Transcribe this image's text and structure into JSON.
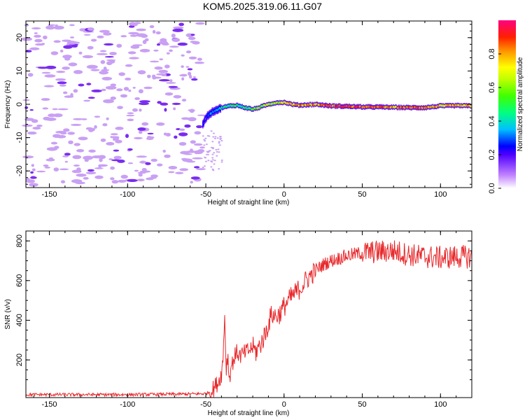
{
  "title": "KOM5.2025.319.06.11.G07",
  "chart_data": [
    {
      "type": "heatmap",
      "xlabel": "Height of straight line (km)",
      "ylabel": "Frequency (Hz)",
      "xlim": [
        -165,
        120
      ],
      "ylim": [
        -25,
        25
      ],
      "xticks": [
        -150,
        -100,
        -50,
        0,
        50,
        100
      ],
      "yticks": [
        -20,
        -10,
        0,
        10,
        20
      ],
      "noise_region_x": [
        -165,
        -52
      ],
      "trace": {
        "x": [
          -52,
          -50,
          -48,
          -45,
          -42,
          -40,
          -35,
          -30,
          -25,
          -20,
          -15,
          -10,
          -5,
          0,
          5,
          10,
          20,
          30,
          40,
          50,
          60,
          70,
          80,
          90,
          100,
          110,
          120
        ],
        "freq": [
          -6,
          -4,
          -3,
          -2,
          -1.5,
          -1,
          -0.5,
          -0.3,
          -1,
          -1.5,
          -0.8,
          0,
          0.5,
          0.6,
          0,
          -0.3,
          0,
          -0.5,
          -0.6,
          -0.8,
          -0.8,
          -0.9,
          -1,
          -1,
          -0.5,
          -0.4,
          -0.5
        ],
        "amplitude": [
          0.15,
          0.2,
          0.25,
          0.3,
          0.35,
          0.4,
          0.45,
          0.5,
          0.5,
          0.55,
          0.6,
          0.6,
          0.65,
          0.7,
          0.75,
          0.8,
          0.8,
          0.85,
          0.9,
          0.9,
          0.85,
          0.8,
          0.85,
          0.8,
          0.75,
          0.8,
          0.8
        ]
      },
      "colorbar": {
        "label": "Normalized spectral amplitude",
        "range": [
          0,
          1
        ],
        "ticks": [
          "0.0",
          "0.2",
          "0.4",
          "0.6",
          "0.8"
        ]
      }
    },
    {
      "type": "line",
      "xlabel": "Height of straight line (km)",
      "ylabel": "SNR (v/v)",
      "xlim": [
        -165,
        120
      ],
      "ylim": [
        10,
        850
      ],
      "xticks": [
        -150,
        -100,
        -50,
        0,
        50,
        100
      ],
      "yticks": [
        200,
        400,
        600,
        800
      ],
      "series": [
        {
          "name": "SNR",
          "color": "#e8282b",
          "x": [
            -165,
            -150,
            -100,
            -60,
            -50,
            -46,
            -42,
            -40,
            -39,
            -38,
            -37,
            -36,
            -35,
            -34,
            -32,
            -30,
            -28,
            -25,
            -22,
            -20,
            -18,
            -15,
            -12,
            -10,
            -8,
            -5,
            -2,
            0,
            5,
            10,
            15,
            20,
            25,
            30,
            40,
            50,
            60,
            70,
            80,
            90,
            100,
            110,
            120
          ],
          "y": [
            25,
            25,
            25,
            28,
            30,
            45,
            90,
            130,
            200,
            440,
            150,
            230,
            100,
            160,
            210,
            240,
            220,
            235,
            250,
            265,
            240,
            280,
            330,
            380,
            430,
            420,
            440,
            470,
            520,
            560,
            610,
            650,
            680,
            700,
            725,
            740,
            745,
            750,
            730,
            720,
            715,
            720,
            720
          ]
        }
      ]
    }
  ]
}
